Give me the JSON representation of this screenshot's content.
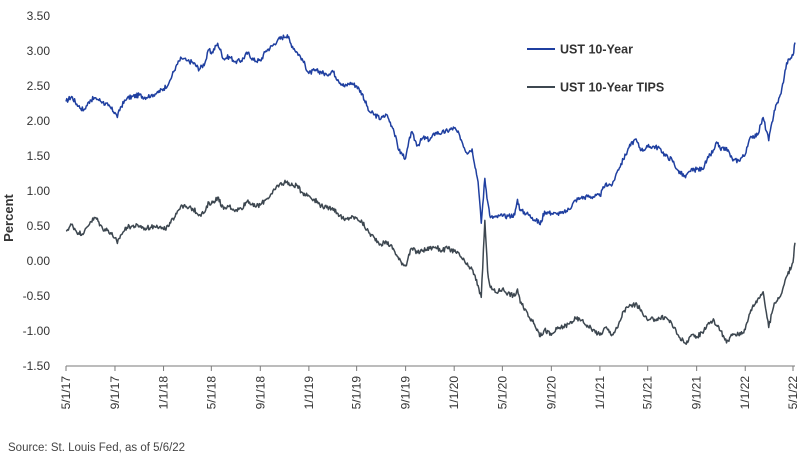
{
  "chart_data": {
    "type": "line",
    "title": "",
    "ylabel": "Percent",
    "xlabel": "",
    "ylim": [
      -1.5,
      3.5
    ],
    "xlim": [
      "2017-05-01",
      "2022-05-06"
    ],
    "y_ticks": [
      "3.50",
      "3.00",
      "2.50",
      "2.00",
      "1.50",
      "1.00",
      "0.50",
      "0.00",
      "-0.50",
      "-1.00",
      "-1.50"
    ],
    "x_ticks": [
      {
        "label": "5/1/17",
        "date": "2017-05-01"
      },
      {
        "label": "9/1/17",
        "date": "2017-09-01"
      },
      {
        "label": "1/1/18",
        "date": "2018-01-01"
      },
      {
        "label": "5/1/18",
        "date": "2018-05-01"
      },
      {
        "label": "9/1/18",
        "date": "2018-09-01"
      },
      {
        "label": "1/1/19",
        "date": "2019-01-01"
      },
      {
        "label": "5/1/19",
        "date": "2019-05-01"
      },
      {
        "label": "9/1/19",
        "date": "2019-09-01"
      },
      {
        "label": "1/1/20",
        "date": "2020-01-01"
      },
      {
        "label": "5/1/20",
        "date": "2020-05-01"
      },
      {
        "label": "9/1/20",
        "date": "2020-09-01"
      },
      {
        "label": "1/1/21",
        "date": "2021-01-01"
      },
      {
        "label": "5/1/21",
        "date": "2021-05-01"
      },
      {
        "label": "9/1/21",
        "date": "2021-09-01"
      },
      {
        "label": "1/1/22",
        "date": "2022-01-01"
      },
      {
        "label": "5/1/22",
        "date": "2022-05-01"
      }
    ],
    "legend_position": "top-right",
    "grid": false,
    "series": [
      {
        "name": "UST 10-Year",
        "color": "#1f3fa0",
        "points": [
          [
            "2017-05-01",
            2.28
          ],
          [
            "2017-05-15",
            2.35
          ],
          [
            "2017-06-01",
            2.21
          ],
          [
            "2017-06-15",
            2.16
          ],
          [
            "2017-07-01",
            2.3
          ],
          [
            "2017-07-15",
            2.33
          ],
          [
            "2017-08-01",
            2.27
          ],
          [
            "2017-08-15",
            2.22
          ],
          [
            "2017-09-01",
            2.12
          ],
          [
            "2017-09-07",
            2.05
          ],
          [
            "2017-09-15",
            2.2
          ],
          [
            "2017-10-01",
            2.32
          ],
          [
            "2017-10-15",
            2.35
          ],
          [
            "2017-11-01",
            2.37
          ],
          [
            "2017-11-15",
            2.34
          ],
          [
            "2017-12-01",
            2.37
          ],
          [
            "2017-12-15",
            2.4
          ],
          [
            "2018-01-01",
            2.46
          ],
          [
            "2018-01-15",
            2.55
          ],
          [
            "2018-02-01",
            2.78
          ],
          [
            "2018-02-15",
            2.9
          ],
          [
            "2018-03-01",
            2.86
          ],
          [
            "2018-03-15",
            2.84
          ],
          [
            "2018-04-01",
            2.74
          ],
          [
            "2018-04-15",
            2.83
          ],
          [
            "2018-04-25",
            3.02
          ],
          [
            "2018-05-01",
            2.96
          ],
          [
            "2018-05-17",
            3.11
          ],
          [
            "2018-06-01",
            2.89
          ],
          [
            "2018-06-15",
            2.92
          ],
          [
            "2018-07-01",
            2.85
          ],
          [
            "2018-07-15",
            2.86
          ],
          [
            "2018-08-01",
            2.98
          ],
          [
            "2018-08-15",
            2.87
          ],
          [
            "2018-09-01",
            2.86
          ],
          [
            "2018-09-15",
            3.0
          ],
          [
            "2018-10-01",
            3.07
          ],
          [
            "2018-10-15",
            3.16
          ],
          [
            "2018-11-08",
            3.23
          ],
          [
            "2018-11-15",
            3.12
          ],
          [
            "2018-12-01",
            2.99
          ],
          [
            "2018-12-15",
            2.89
          ],
          [
            "2019-01-01",
            2.68
          ],
          [
            "2019-01-15",
            2.72
          ],
          [
            "2019-02-01",
            2.7
          ],
          [
            "2019-02-15",
            2.66
          ],
          [
            "2019-03-01",
            2.72
          ],
          [
            "2019-03-15",
            2.59
          ],
          [
            "2019-04-01",
            2.49
          ],
          [
            "2019-04-15",
            2.55
          ],
          [
            "2019-05-01",
            2.5
          ],
          [
            "2019-05-15",
            2.39
          ],
          [
            "2019-06-01",
            2.14
          ],
          [
            "2019-06-15",
            2.09
          ],
          [
            "2019-07-01",
            2.03
          ],
          [
            "2019-07-15",
            2.09
          ],
          [
            "2019-08-01",
            1.89
          ],
          [
            "2019-08-15",
            1.58
          ],
          [
            "2019-09-01",
            1.47
          ],
          [
            "2019-09-15",
            1.84
          ],
          [
            "2019-10-01",
            1.65
          ],
          [
            "2019-10-15",
            1.76
          ],
          [
            "2019-11-01",
            1.73
          ],
          [
            "2019-11-15",
            1.83
          ],
          [
            "2019-12-01",
            1.83
          ],
          [
            "2019-12-15",
            1.86
          ],
          [
            "2020-01-01",
            1.9
          ],
          [
            "2020-01-15",
            1.79
          ],
          [
            "2020-02-01",
            1.55
          ],
          [
            "2020-02-15",
            1.6
          ],
          [
            "2020-03-01",
            1.13
          ],
          [
            "2020-03-09",
            0.54
          ],
          [
            "2020-03-18",
            1.18
          ],
          [
            "2020-03-25",
            0.85
          ],
          [
            "2020-04-01",
            0.62
          ],
          [
            "2020-04-15",
            0.63
          ],
          [
            "2020-05-01",
            0.64
          ],
          [
            "2020-05-15",
            0.64
          ],
          [
            "2020-06-01",
            0.66
          ],
          [
            "2020-06-08",
            0.88
          ],
          [
            "2020-06-15",
            0.72
          ],
          [
            "2020-07-01",
            0.68
          ],
          [
            "2020-07-15",
            0.62
          ],
          [
            "2020-08-01",
            0.55
          ],
          [
            "2020-08-04",
            0.52
          ],
          [
            "2020-08-15",
            0.71
          ],
          [
            "2020-09-01",
            0.68
          ],
          [
            "2020-09-15",
            0.67
          ],
          [
            "2020-10-01",
            0.68
          ],
          [
            "2020-10-15",
            0.74
          ],
          [
            "2020-11-01",
            0.87
          ],
          [
            "2020-11-15",
            0.9
          ],
          [
            "2020-12-01",
            0.92
          ],
          [
            "2020-12-15",
            0.92
          ],
          [
            "2021-01-01",
            0.93
          ],
          [
            "2021-01-15",
            1.1
          ],
          [
            "2021-02-01",
            1.09
          ],
          [
            "2021-02-15",
            1.3
          ],
          [
            "2021-03-01",
            1.45
          ],
          [
            "2021-03-15",
            1.62
          ],
          [
            "2021-03-31",
            1.74
          ],
          [
            "2021-04-15",
            1.58
          ],
          [
            "2021-05-01",
            1.63
          ],
          [
            "2021-05-15",
            1.64
          ],
          [
            "2021-06-01",
            1.61
          ],
          [
            "2021-06-15",
            1.5
          ],
          [
            "2021-07-01",
            1.45
          ],
          [
            "2021-07-15",
            1.3
          ],
          [
            "2021-08-04",
            1.19
          ],
          [
            "2021-08-15",
            1.28
          ],
          [
            "2021-09-01",
            1.31
          ],
          [
            "2021-09-15",
            1.31
          ],
          [
            "2021-10-01",
            1.48
          ],
          [
            "2021-10-15",
            1.59
          ],
          [
            "2021-10-21",
            1.7
          ],
          [
            "2021-11-01",
            1.58
          ],
          [
            "2021-11-15",
            1.62
          ],
          [
            "2021-12-01",
            1.43
          ],
          [
            "2021-12-15",
            1.44
          ],
          [
            "2022-01-01",
            1.52
          ],
          [
            "2022-01-15",
            1.78
          ],
          [
            "2022-02-01",
            1.8
          ],
          [
            "2022-02-15",
            2.05
          ],
          [
            "2022-03-01",
            1.72
          ],
          [
            "2022-03-15",
            2.15
          ],
          [
            "2022-04-01",
            2.39
          ],
          [
            "2022-04-15",
            2.83
          ],
          [
            "2022-05-01",
            2.94
          ],
          [
            "2022-05-06",
            3.12
          ]
        ]
      },
      {
        "name": "UST 10-Year TIPS",
        "color": "#3d4750",
        "points": [
          [
            "2017-05-01",
            0.43
          ],
          [
            "2017-05-15",
            0.52
          ],
          [
            "2017-06-01",
            0.4
          ],
          [
            "2017-06-15",
            0.4
          ],
          [
            "2017-07-01",
            0.56
          ],
          [
            "2017-07-15",
            0.62
          ],
          [
            "2017-08-01",
            0.46
          ],
          [
            "2017-08-15",
            0.44
          ],
          [
            "2017-09-01",
            0.33
          ],
          [
            "2017-09-07",
            0.25
          ],
          [
            "2017-09-15",
            0.37
          ],
          [
            "2017-10-01",
            0.48
          ],
          [
            "2017-10-15",
            0.5
          ],
          [
            "2017-11-01",
            0.5
          ],
          [
            "2017-11-15",
            0.47
          ],
          [
            "2017-12-01",
            0.48
          ],
          [
            "2017-12-15",
            0.51
          ],
          [
            "2018-01-01",
            0.45
          ],
          [
            "2018-01-15",
            0.5
          ],
          [
            "2018-02-01",
            0.68
          ],
          [
            "2018-02-15",
            0.8
          ],
          [
            "2018-03-01",
            0.76
          ],
          [
            "2018-03-15",
            0.75
          ],
          [
            "2018-04-01",
            0.66
          ],
          [
            "2018-04-15",
            0.7
          ],
          [
            "2018-04-25",
            0.84
          ],
          [
            "2018-05-01",
            0.82
          ],
          [
            "2018-05-17",
            0.91
          ],
          [
            "2018-06-01",
            0.74
          ],
          [
            "2018-06-15",
            0.78
          ],
          [
            "2018-07-01",
            0.73
          ],
          [
            "2018-07-15",
            0.75
          ],
          [
            "2018-08-01",
            0.87
          ],
          [
            "2018-08-15",
            0.78
          ],
          [
            "2018-09-01",
            0.8
          ],
          [
            "2018-09-15",
            0.88
          ],
          [
            "2018-10-01",
            0.96
          ],
          [
            "2018-10-15",
            1.08
          ],
          [
            "2018-11-08",
            1.14
          ],
          [
            "2018-11-15",
            1.08
          ],
          [
            "2018-12-01",
            1.08
          ],
          [
            "2018-12-15",
            0.98
          ],
          [
            "2019-01-01",
            0.93
          ],
          [
            "2019-01-15",
            0.88
          ],
          [
            "2019-02-01",
            0.79
          ],
          [
            "2019-02-15",
            0.76
          ],
          [
            "2019-03-01",
            0.76
          ],
          [
            "2019-03-15",
            0.68
          ],
          [
            "2019-04-01",
            0.58
          ],
          [
            "2019-04-15",
            0.62
          ],
          [
            "2019-05-01",
            0.62
          ],
          [
            "2019-05-15",
            0.55
          ],
          [
            "2019-06-01",
            0.4
          ],
          [
            "2019-06-15",
            0.33
          ],
          [
            "2019-07-01",
            0.24
          ],
          [
            "2019-07-15",
            0.27
          ],
          [
            "2019-08-01",
            0.18
          ],
          [
            "2019-08-15",
            0.02
          ],
          [
            "2019-09-01",
            -0.07
          ],
          [
            "2019-09-15",
            0.18
          ],
          [
            "2019-10-01",
            0.12
          ],
          [
            "2019-10-15",
            0.15
          ],
          [
            "2019-11-01",
            0.18
          ],
          [
            "2019-11-15",
            0.2
          ],
          [
            "2019-12-01",
            0.15
          ],
          [
            "2019-12-15",
            0.18
          ],
          [
            "2020-01-01",
            0.14
          ],
          [
            "2020-01-15",
            0.08
          ],
          [
            "2020-02-01",
            -0.05
          ],
          [
            "2020-02-15",
            -0.12
          ],
          [
            "2020-03-01",
            -0.35
          ],
          [
            "2020-03-09",
            -0.52
          ],
          [
            "2020-03-18",
            0.58
          ],
          [
            "2020-03-25",
            -0.15
          ],
          [
            "2020-04-01",
            -0.38
          ],
          [
            "2020-04-15",
            -0.45
          ],
          [
            "2020-05-01",
            -0.4
          ],
          [
            "2020-05-15",
            -0.46
          ],
          [
            "2020-06-01",
            -0.5
          ],
          [
            "2020-06-08",
            -0.4
          ],
          [
            "2020-06-15",
            -0.6
          ],
          [
            "2020-07-01",
            -0.72
          ],
          [
            "2020-07-15",
            -0.86
          ],
          [
            "2020-08-01",
            -1.02
          ],
          [
            "2020-08-04",
            -1.08
          ],
          [
            "2020-08-15",
            -0.98
          ],
          [
            "2020-09-01",
            -1.06
          ],
          [
            "2020-09-15",
            -0.97
          ],
          [
            "2020-10-01",
            -0.94
          ],
          [
            "2020-10-15",
            -0.9
          ],
          [
            "2020-11-01",
            -0.82
          ],
          [
            "2020-11-15",
            -0.85
          ],
          [
            "2020-12-01",
            -0.92
          ],
          [
            "2020-12-15",
            -0.98
          ],
          [
            "2021-01-01",
            -1.06
          ],
          [
            "2021-01-15",
            -0.95
          ],
          [
            "2021-02-01",
            -1.05
          ],
          [
            "2021-02-15",
            -0.95
          ],
          [
            "2021-03-01",
            -0.72
          ],
          [
            "2021-03-15",
            -0.65
          ],
          [
            "2021-03-31",
            -0.62
          ],
          [
            "2021-04-15",
            -0.7
          ],
          [
            "2021-05-01",
            -0.85
          ],
          [
            "2021-05-15",
            -0.83
          ],
          [
            "2021-06-01",
            -0.82
          ],
          [
            "2021-06-15",
            -0.8
          ],
          [
            "2021-07-01",
            -0.9
          ],
          [
            "2021-07-15",
            -1.05
          ],
          [
            "2021-08-04",
            -1.18
          ],
          [
            "2021-08-15",
            -1.08
          ],
          [
            "2021-09-01",
            -1.08
          ],
          [
            "2021-09-15",
            -1.02
          ],
          [
            "2021-10-01",
            -0.88
          ],
          [
            "2021-10-15",
            -0.85
          ],
          [
            "2021-10-21",
            -0.92
          ],
          [
            "2021-11-01",
            -1.0
          ],
          [
            "2021-11-15",
            -1.17
          ],
          [
            "2021-12-01",
            -1.04
          ],
          [
            "2021-12-15",
            -1.05
          ],
          [
            "2022-01-01",
            -0.98
          ],
          [
            "2022-01-15",
            -0.7
          ],
          [
            "2022-02-01",
            -0.55
          ],
          [
            "2022-02-15",
            -0.44
          ],
          [
            "2022-03-01",
            -0.95
          ],
          [
            "2022-03-15",
            -0.6
          ],
          [
            "2022-04-01",
            -0.48
          ],
          [
            "2022-04-15",
            -0.22
          ],
          [
            "2022-05-01",
            -0.02
          ],
          [
            "2022-05-06",
            0.26
          ]
        ]
      }
    ]
  },
  "source": "Source: St. Louis Fed, as of 5/6/22"
}
